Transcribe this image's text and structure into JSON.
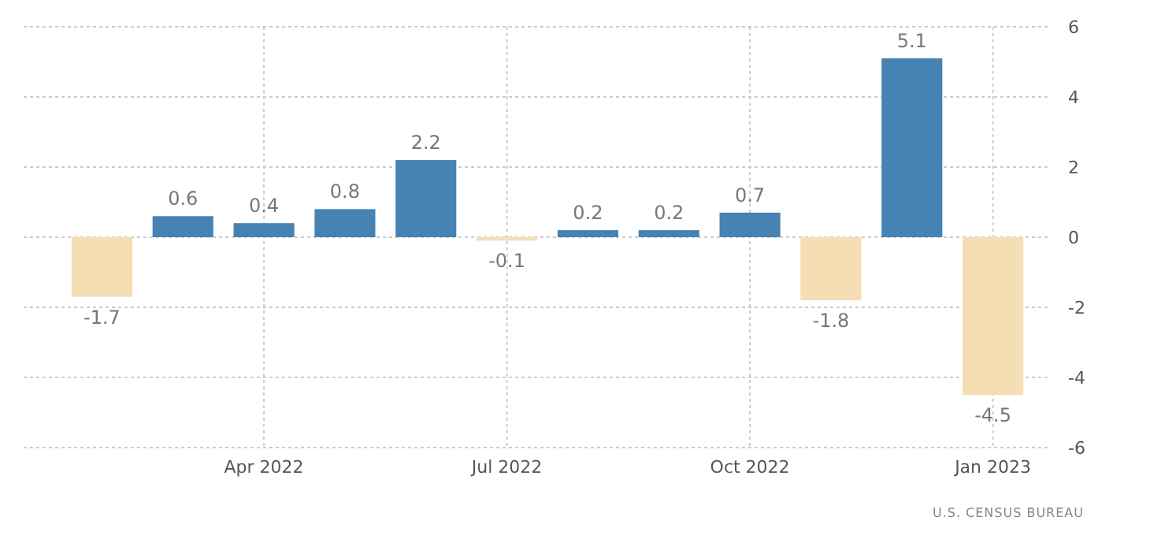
{
  "chart_data": {
    "type": "bar",
    "categories": [
      null,
      null,
      "Apr 2022",
      null,
      null,
      "Jul 2022",
      null,
      null,
      "Oct 2022",
      null,
      null,
      "Jan 2023"
    ],
    "values": [
      -1.7,
      0.6,
      0.4,
      0.8,
      2.2,
      -0.1,
      0.2,
      0.2,
      0.7,
      -1.8,
      5.1,
      -4.5
    ],
    "colors": [
      "#f5deb3",
      "#4682b4",
      "#4682b4",
      "#4682b4",
      "#4682b4",
      "#f5deb3",
      "#4682b4",
      "#4682b4",
      "#4682b4",
      "#f5deb3",
      "#4682b4",
      "#f5deb3"
    ],
    "ylim": [
      -6,
      6
    ],
    "yticks": [
      -6,
      -4,
      -2,
      0,
      2,
      4,
      6
    ],
    "grid": true,
    "data_labels": true,
    "annotations": [
      "U.S. CENSUS BUREAU"
    ]
  }
}
